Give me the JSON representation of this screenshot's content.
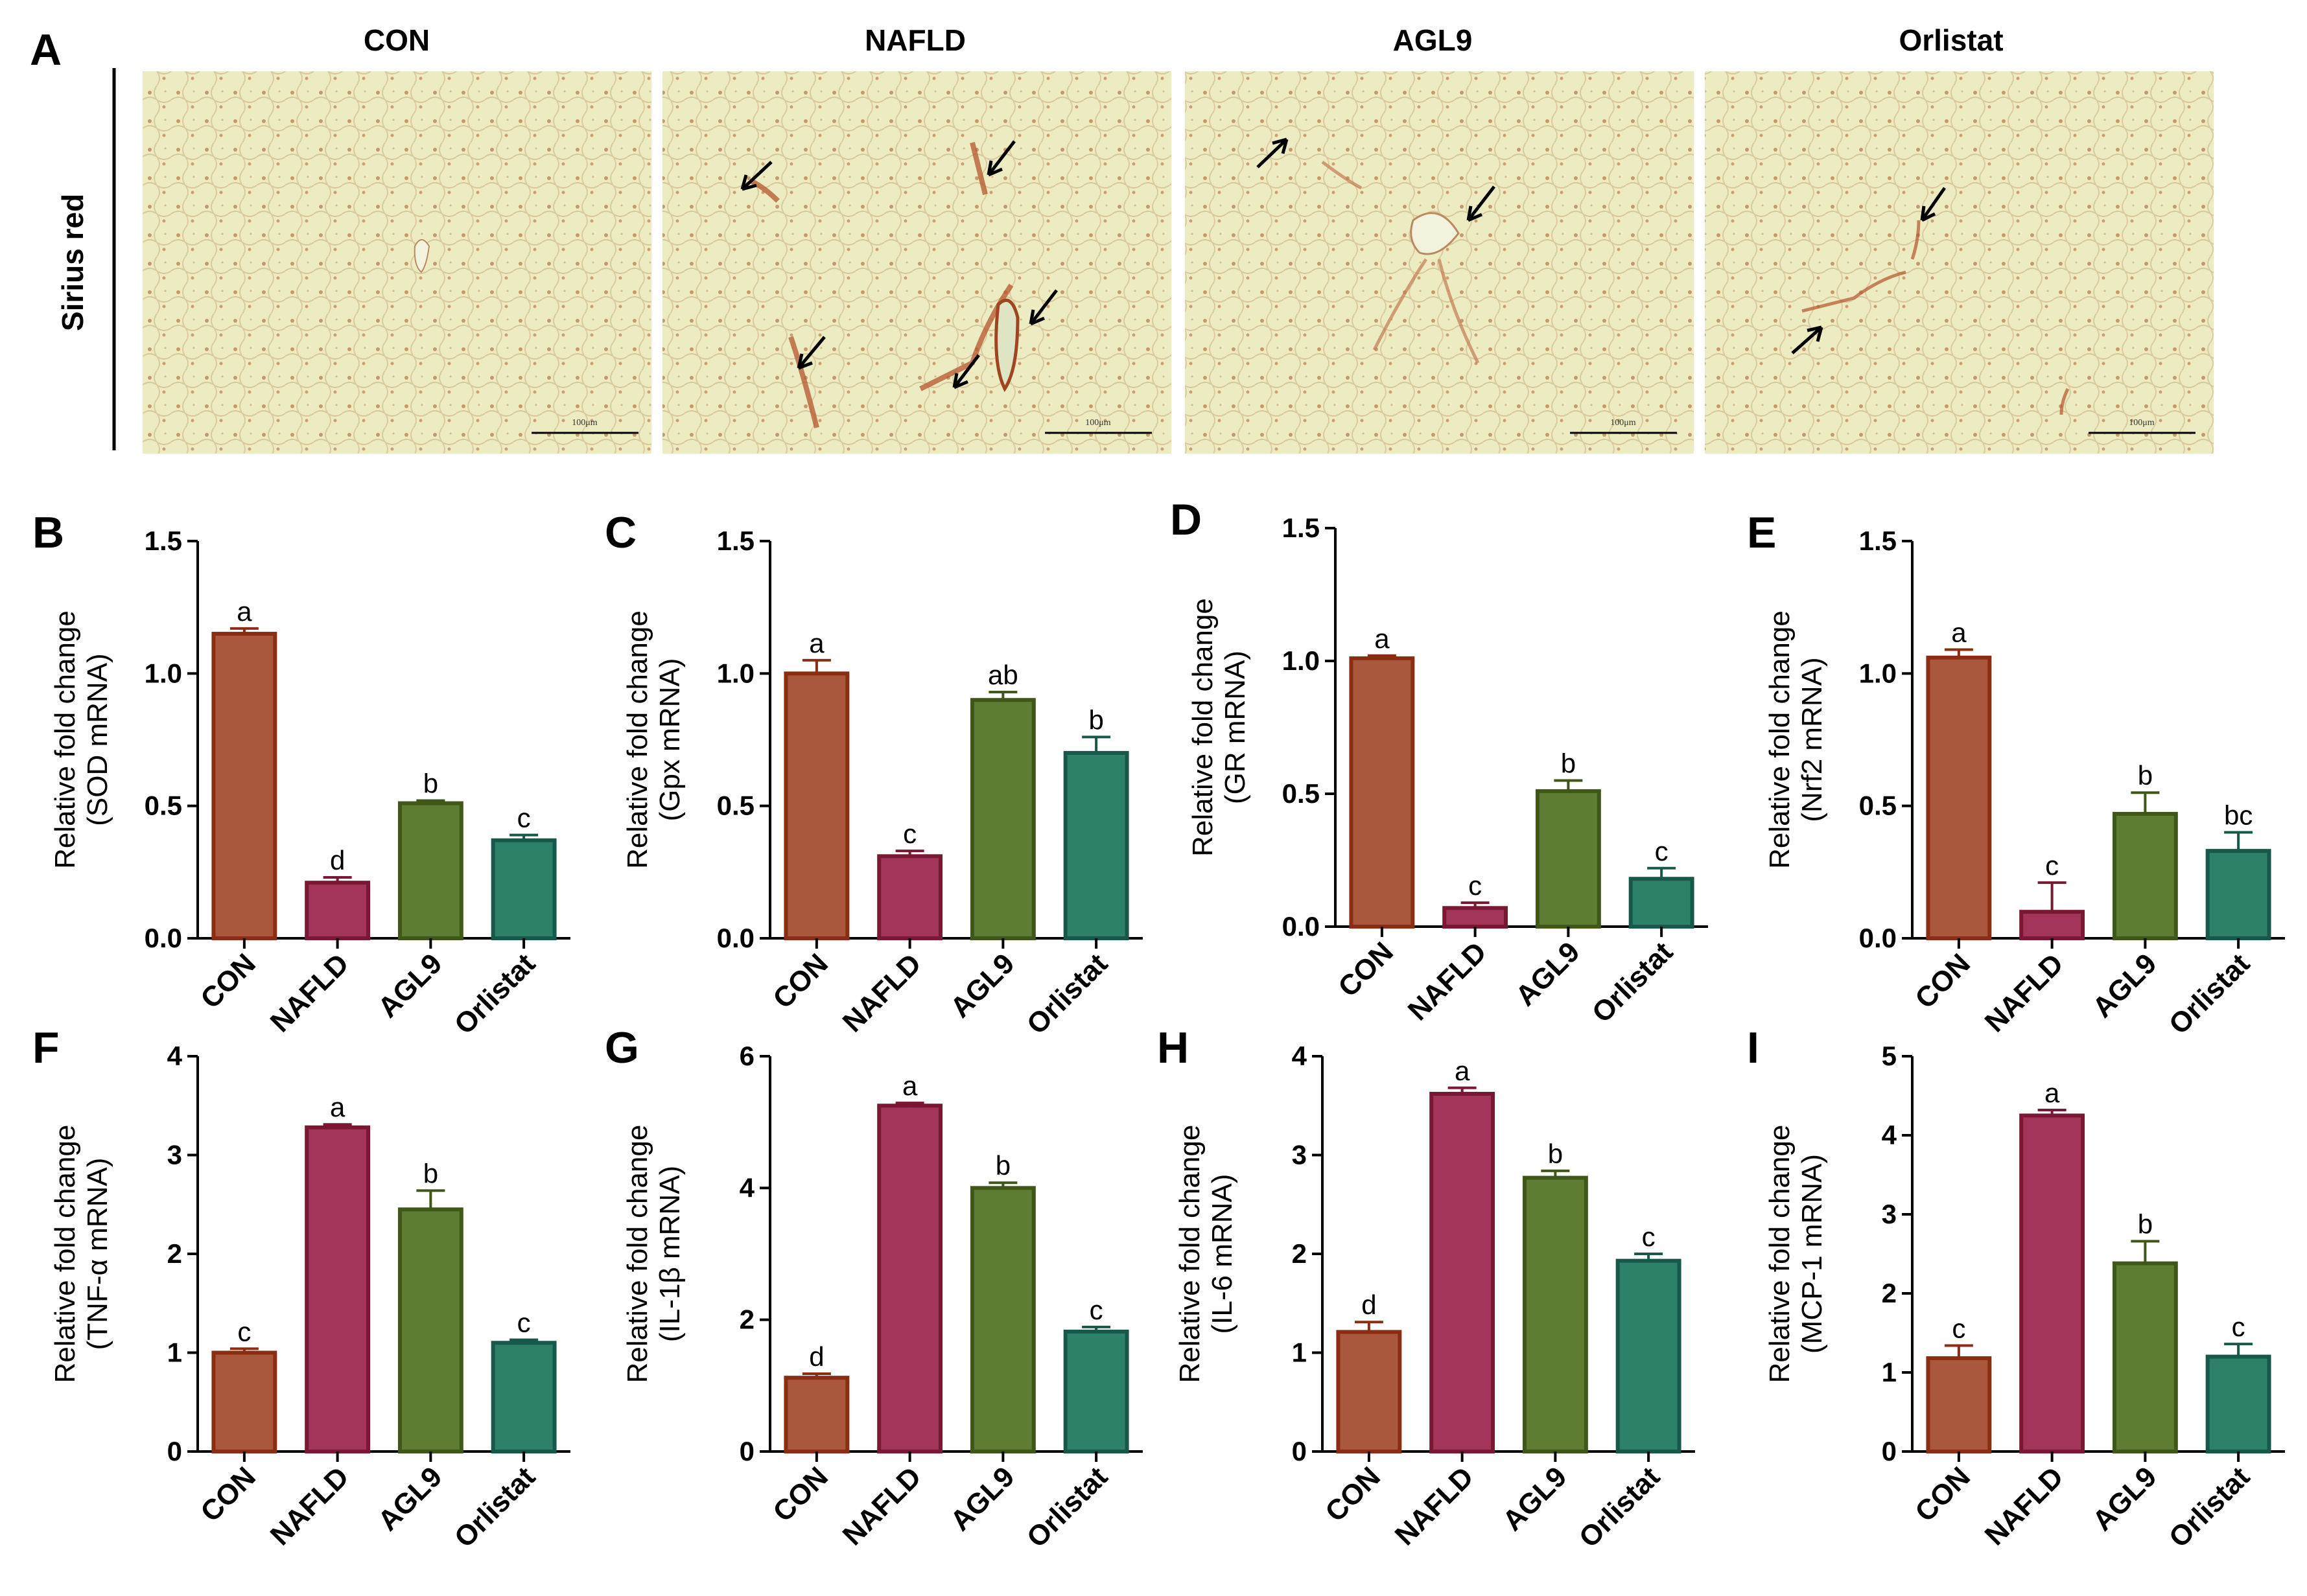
{
  "panel_a": {
    "letter": "A",
    "row_label": "Sirius red",
    "images": [
      {
        "title": "CON",
        "scale_text": "100μm"
      },
      {
        "title": "NAFLD",
        "scale_text": "100μm"
      },
      {
        "title": "AGL9",
        "scale_text": "100μm"
      },
      {
        "title": "Orlistat",
        "scale_text": "100μm"
      }
    ]
  },
  "colors": {
    "CON": {
      "fill": "#A9583E",
      "stroke": "#8A2D12"
    },
    "NAFLD": {
      "fill": "#A3355A",
      "stroke": "#7A1733"
    },
    "AGL9": {
      "fill": "#5F7D32",
      "stroke": "#3F5718"
    },
    "Orlistat": {
      "fill": "#2E8169",
      "stroke": "#17584A"
    }
  },
  "chart_data": [
    {
      "letter": "B",
      "type": "bar",
      "categories": [
        "CON",
        "NAFLD",
        "AGL9",
        "Orlistat"
      ],
      "values": [
        1.15,
        0.21,
        0.51,
        0.37
      ],
      "errors": [
        0.02,
        0.02,
        0.01,
        0.02
      ],
      "sig": [
        "a",
        "d",
        "b",
        "c"
      ],
      "ylabel_line1": "Relative fold change",
      "ylabel_line2": "(SOD mRNA)",
      "ylim": [
        0,
        1.5
      ],
      "ticks": [
        "0.0",
        "0.5",
        "1.0",
        "1.5"
      ]
    },
    {
      "letter": "C",
      "type": "bar",
      "categories": [
        "CON",
        "NAFLD",
        "AGL9",
        "Orlistat"
      ],
      "values": [
        1.0,
        0.31,
        0.9,
        0.7
      ],
      "errors": [
        0.05,
        0.02,
        0.03,
        0.06
      ],
      "sig": [
        "a",
        "c",
        "ab",
        "b"
      ],
      "ylabel_line1": "Relative fold change",
      "ylabel_line2": "(Gpx mRNA)",
      "ylim": [
        0,
        1.5
      ],
      "ticks": [
        "0.0",
        "0.5",
        "1.0",
        "1.5"
      ]
    },
    {
      "letter": "D",
      "type": "bar",
      "categories": [
        "CON",
        "NAFLD",
        "AGL9",
        "Orlistat"
      ],
      "values": [
        1.01,
        0.07,
        0.51,
        0.18
      ],
      "errors": [
        0.01,
        0.02,
        0.04,
        0.04
      ],
      "sig": [
        "a",
        "c",
        "b",
        "c"
      ],
      "ylabel_line1": "Relative fold change",
      "ylabel_line2": "(GR mRNA)",
      "ylim": [
        0,
        1.5
      ],
      "ticks": [
        "0.0",
        "0.5",
        "1.0",
        "1.5"
      ]
    },
    {
      "letter": "E",
      "type": "bar",
      "categories": [
        "CON",
        "NAFLD",
        "AGL9",
        "Orlistat"
      ],
      "values": [
        1.06,
        0.1,
        0.47,
        0.33
      ],
      "errors": [
        0.03,
        0.11,
        0.08,
        0.07
      ],
      "sig": [
        "a",
        "c",
        "b",
        "bc"
      ],
      "ylabel_line1": "Relative fold change",
      "ylabel_line2": "(Nrf2 mRNA)",
      "ylim": [
        0,
        1.5
      ],
      "ticks": [
        "0.0",
        "0.5",
        "1.0",
        "1.5"
      ]
    },
    {
      "letter": "F",
      "type": "bar",
      "categories": [
        "CON",
        "NAFLD",
        "AGL9",
        "Orlistat"
      ],
      "values": [
        1.0,
        3.28,
        2.45,
        1.1
      ],
      "errors": [
        0.04,
        0.03,
        0.19,
        0.03
      ],
      "sig": [
        "c",
        "a",
        "b",
        "c"
      ],
      "ylabel_line1": "Relative fold change",
      "ylabel_line2": "(TNF-α mRNA)",
      "ylim": [
        0,
        4
      ],
      "ticks": [
        "0",
        "1",
        "2",
        "3",
        "4"
      ]
    },
    {
      "letter": "G",
      "type": "bar",
      "categories": [
        "CON",
        "NAFLD",
        "AGL9",
        "Orlistat"
      ],
      "values": [
        1.12,
        5.25,
        4.0,
        1.82
      ],
      "errors": [
        0.06,
        0.04,
        0.08,
        0.07
      ],
      "sig": [
        "d",
        "a",
        "b",
        "c"
      ],
      "ylabel_line1": "Relative fold change",
      "ylabel_line2": "(IL-1β mRNA)",
      "ylim": [
        0,
        6
      ],
      "ticks": [
        "0",
        "2",
        "4",
        "6"
      ]
    },
    {
      "letter": "H",
      "type": "bar",
      "categories": [
        "CON",
        "NAFLD",
        "AGL9",
        "Orlistat"
      ],
      "values": [
        1.21,
        3.62,
        2.77,
        1.93
      ],
      "errors": [
        0.1,
        0.06,
        0.07,
        0.07
      ],
      "sig": [
        "d",
        "a",
        "b",
        "c"
      ],
      "ylabel_line1": "Relative fold change",
      "ylabel_line2": "(IL-6 mRNA)",
      "ylim": [
        0,
        4
      ],
      "ticks": [
        "0",
        "1",
        "2",
        "3",
        "4"
      ]
    },
    {
      "letter": "I",
      "type": "bar",
      "categories": [
        "CON",
        "NAFLD",
        "AGL9",
        "Orlistat"
      ],
      "values": [
        1.18,
        4.25,
        2.38,
        1.2
      ],
      "errors": [
        0.16,
        0.07,
        0.28,
        0.16
      ],
      "sig": [
        "c",
        "a",
        "b",
        "c"
      ],
      "ylabel_line1": "Relative fold change",
      "ylabel_line2": "(MCP-1 mRNA)",
      "ylim": [
        0,
        5
      ],
      "ticks": [
        "0",
        "1",
        "2",
        "3",
        "4",
        "5"
      ]
    }
  ]
}
